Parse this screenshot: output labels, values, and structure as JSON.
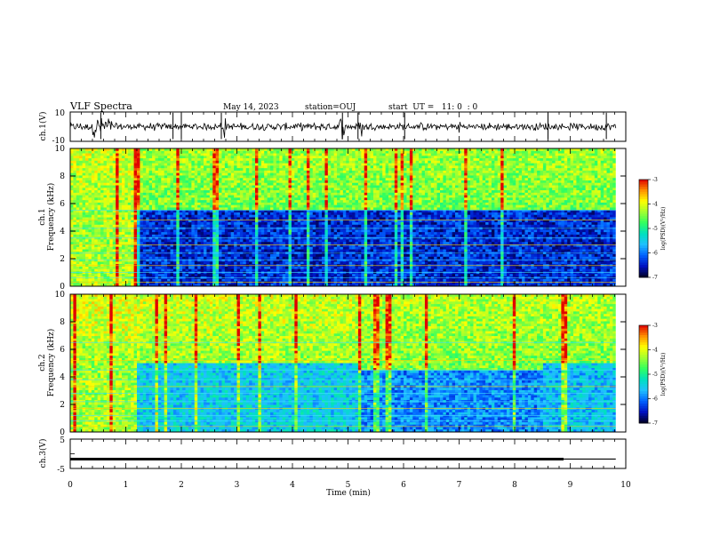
{
  "header": {
    "title": "VLF Spectra",
    "date": "May 14, 2023",
    "station": "station=OUJ",
    "start": "start  UT =   11: 0  : 0"
  },
  "colors": {
    "spectrum_stops": [
      "#000020",
      "#0010c0",
      "#0060ff",
      "#20c0ff",
      "#00e0c0",
      "#30ff60",
      "#a0ff30",
      "#ffff00",
      "#ff9000",
      "#e00000"
    ],
    "line_color": "#000000"
  },
  "chart_data": [
    {
      "type": "line",
      "name_label": "ch.1(V)",
      "x_range_min": [
        0,
        9.82
      ],
      "ylim": [
        -10,
        10
      ],
      "yticks": [
        "10",
        "-10"
      ],
      "baseline_v": 0,
      "noise_amplitude_v": 2,
      "burst_windows_min": [
        [
          0.4,
          0.75
        ],
        [
          2.7,
          2.8
        ],
        [
          4.85,
          4.95
        ],
        [
          5.15,
          5.25
        ],
        [
          7.0,
          7.05
        ]
      ],
      "spike_times_min": [
        0.55,
        1.85,
        2.0,
        2.72,
        4.9,
        5.18,
        6.02,
        8.6,
        9.65
      ]
    },
    {
      "type": "heatmap",
      "ylabel": "Frequency (kHz)",
      "series_label": "ch.1",
      "xlim": [
        0,
        9.82
      ],
      "ylim": [
        0,
        10
      ],
      "yticks": [
        "0",
        "2",
        "4",
        "6",
        "8",
        "10"
      ],
      "colorbar": {
        "label": "log(PSD)(V²/Hz)",
        "ticks": [
          "-3",
          "-4",
          "-5",
          "-6",
          "-7"
        ],
        "range": [
          -7,
          -3
        ]
      },
      "transition_min": 1.22,
      "regimes": [
        {
          "x_range_min": [
            0,
            1.22
          ],
          "lower_band_khz": [
            0,
            6.3
          ],
          "lower_log_psd": -4.3,
          "upper_log_psd": -4.6
        },
        {
          "x_range_min": [
            1.22,
            9.82
          ],
          "lower_band_khz": [
            0,
            5.6
          ],
          "lower_log_psd": -6.4,
          "upper_log_psd": -4.8
        }
      ],
      "tone_lines_khz": [
        0.3,
        0.6,
        1.0,
        1.5,
        1.9,
        2.4,
        3.0,
        3.5,
        4.2,
        4.8,
        5.5
      ]
    },
    {
      "type": "heatmap",
      "ylabel": "Frequency (kHz)",
      "series_label": "ch.2",
      "xlim": [
        0,
        9.82
      ],
      "ylim": [
        0,
        10
      ],
      "yticks": [
        "0",
        "2",
        "4",
        "6",
        "8",
        "10"
      ],
      "colorbar": {
        "label": "log(PSD)(V²/Hz)",
        "ticks": [
          "-3",
          "-4",
          "-5",
          "-6",
          "-7"
        ],
        "range": [
          -7,
          -3
        ]
      },
      "transition_min": 1.22,
      "regimes": [
        {
          "x_range_min": [
            0,
            1.22
          ],
          "lower_band_khz": [
            0,
            6.3
          ],
          "lower_log_psd": -4.3,
          "upper_log_psd": -4.5
        },
        {
          "x_range_min": [
            1.22,
            5.2
          ],
          "lower_band_khz": [
            0,
            5.0
          ],
          "lower_log_psd": -5.5,
          "upper_log_psd": -4.6
        },
        {
          "x_range_min": [
            5.2,
            8.5
          ],
          "lower_band_khz": [
            0,
            4.4
          ],
          "lower_log_psd": -5.9,
          "upper_log_psd": -4.7
        },
        {
          "x_range_min": [
            8.5,
            9.82
          ],
          "lower_band_khz": [
            0,
            5.0
          ],
          "lower_log_psd": -5.6,
          "upper_log_psd": -4.7
        }
      ],
      "tone_lines_khz": [
        0.4,
        0.8,
        1.2,
        1.7,
        2.2,
        2.8,
        3.3,
        3.8,
        4.5,
        5.2,
        6.5
      ]
    },
    {
      "type": "line",
      "name_label": "ch.3(V)",
      "xlabel": "Time (min)",
      "xlim": [
        0,
        10
      ],
      "xticks": [
        "0",
        "1",
        "2",
        "3",
        "4",
        "5",
        "6",
        "7",
        "8",
        "9",
        "10"
      ],
      "ylim": [
        -5,
        5
      ],
      "yticks": [
        "5",
        "0",
        "-5"
      ],
      "segments": [
        {
          "x_range_min": [
            0,
            8.88
          ],
          "value_v": -1.8,
          "style": "thick"
        },
        {
          "x_range_min": [
            8.88,
            9.82
          ],
          "value_v": -1.8,
          "style": "thin"
        }
      ]
    }
  ]
}
